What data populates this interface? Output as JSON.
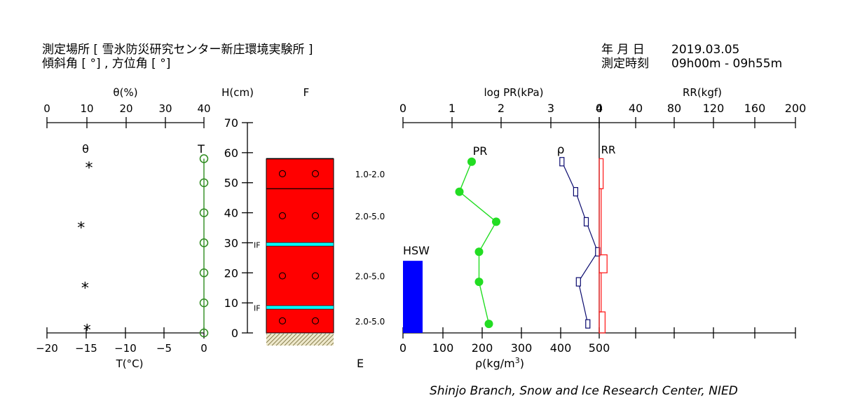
{
  "header": {
    "site": "測定場所 [ 雪氷防災研究センター新庄環境実験所 ]",
    "angles": "傾斜角 [ °] , 方位角 [ °]",
    "date_label": "年 月 日",
    "date_value": "2019.03.05",
    "time_label": "測定時刻",
    "time_value": "09h00m - 09h55m"
  },
  "footer": {
    "credit": "Shinjo Branch, Snow and Ice Research Center, NIED",
    "e_label": "E"
  },
  "chart_data": [
    {
      "id": "theta_temperature",
      "type": "scatter",
      "top_axis": {
        "label": "θ(%)",
        "range": [
          0,
          40
        ],
        "ticks": [
          "0",
          "10",
          "20",
          "30",
          "40"
        ]
      },
      "bottom_axis": {
        "label": "T(°C)",
        "range": [
          -20,
          0
        ],
        "ticks": [
          "−20",
          "−15",
          "−10",
          "−5",
          "0"
        ]
      },
      "series": [
        {
          "name": "θ",
          "marker": "*",
          "axis": "top",
          "points": [
            {
              "v": 10,
              "h": 56
            },
            {
              "v": 8,
              "h": 36
            },
            {
              "v": 9,
              "h": 16
            },
            {
              "v": 9.5,
              "h": 2
            }
          ]
        },
        {
          "name": "T",
          "marker": "circle",
          "axis": "bottom",
          "color": "#2e8b1f",
          "points": [
            {
              "v": 0,
              "h": 58
            },
            {
              "v": 0,
              "h": 50
            },
            {
              "v": 0,
              "h": 40
            },
            {
              "v": 0,
              "h": 30
            },
            {
              "v": 0,
              "h": 20
            },
            {
              "v": 0,
              "h": 10
            },
            {
              "v": 0,
              "h": 0
            }
          ]
        }
      ]
    },
    {
      "id": "snow_profile",
      "type": "table",
      "height_axis": {
        "label": "H(cm)",
        "range": [
          0,
          70
        ],
        "ticks": [
          "0",
          "10",
          "20",
          "30",
          "40",
          "50",
          "60",
          "70"
        ]
      },
      "column_label": "F",
      "snow_top": 58,
      "layer_boundaries": [
        48
      ],
      "ice_layers": [
        {
          "h": 29.5,
          "label": "IF"
        },
        {
          "h": 8.5,
          "label": "IF"
        }
      ],
      "grain_marks": [
        53,
        39,
        19,
        4
      ],
      "grain_sizes": [
        {
          "h": 53,
          "label": "1.0-2.0"
        },
        {
          "h": 39,
          "label": "2.0-5.0"
        },
        {
          "h": 19,
          "label": "2.0-5.0"
        },
        {
          "h": 4,
          "label": "2.0-5.0"
        }
      ]
    },
    {
      "id": "hardness_density",
      "type": "line",
      "top_axis": {
        "label": "log PR(kPa)",
        "range": [
          0,
          4
        ],
        "ticks": [
          "0",
          "1",
          "2",
          "3",
          "4"
        ]
      },
      "rr_axis": {
        "label": "RR(kgf)",
        "range": [
          0,
          200
        ],
        "ticks": [
          "0",
          "40",
          "80",
          "120",
          "160",
          "200"
        ]
      },
      "bottom_axis": {
        "label": "ρ(kg/m",
        "label_sup": "3",
        "label_end": ")",
        "range": [
          0,
          500
        ],
        "ticks": [
          "0",
          "100",
          "200",
          "300",
          "400",
          "500"
        ]
      },
      "hsw": {
        "label": "HSW",
        "value": 50,
        "height": 24,
        "color": "#0000ff"
      },
      "series": [
        {
          "name": "PR",
          "color": "#22dd22",
          "points": [
            {
              "v": 1.4,
              "h": 57
            },
            {
              "v": 1.15,
              "h": 47
            },
            {
              "v": 1.9,
              "h": 37
            },
            {
              "v": 1.55,
              "h": 27
            },
            {
              "v": 1.55,
              "h": 17
            },
            {
              "v": 1.75,
              "h": 3
            }
          ]
        },
        {
          "name": "ρ",
          "color": "#0a0a6e",
          "points": [
            {
              "v": 405,
              "h": 57
            },
            {
              "v": 440,
              "h": 47
            },
            {
              "v": 467,
              "h": 37
            },
            {
              "v": 496,
              "h": 27
            },
            {
              "v": 447,
              "h": 17
            },
            {
              "v": 471,
              "h": 3
            }
          ]
        },
        {
          "name": "RR",
          "color": "#ff2222",
          "steps": [
            {
              "top": 58,
              "bottom": 48,
              "v": 4
            },
            {
              "top": 48,
              "bottom": 26,
              "v": 2
            },
            {
              "top": 26,
              "bottom": 20,
              "v": 8
            },
            {
              "top": 20,
              "bottom": 7,
              "v": 2
            },
            {
              "top": 7,
              "bottom": 0,
              "v": 6
            }
          ]
        }
      ]
    }
  ]
}
